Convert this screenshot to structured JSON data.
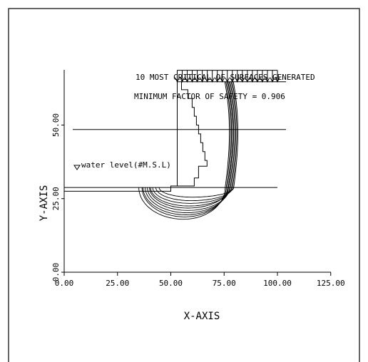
{
  "chart_data": {
    "type": "line",
    "title_lines": [
      "10 MOST CRITICAL OF SURFACES GENERATED",
      "MINIMUM FACTOR OF SAFETY = 0.906"
    ],
    "xlabel": "X-AXIS",
    "ylabel": "Y-AXIS",
    "xlim": [
      0,
      125
    ],
    "ylim": [
      0,
      62
    ],
    "x_ticks": [
      0,
      25,
      50,
      75,
      100,
      125
    ],
    "x_tick_labels": [
      "0.00",
      "25.00",
      "50.00",
      "75.00",
      "100.00",
      "125.00"
    ],
    "y_ticks": [
      0,
      25,
      50
    ],
    "y_tick_labels": [
      "0.00",
      "25.00",
      "50.00"
    ],
    "grid": false,
    "water_level_label": "water level(#M.S.L)",
    "slope_lines": [
      {
        "name": "ground-profile",
        "points": [
          [
            0,
            27.5
          ],
          [
            50,
            27.5
          ],
          [
            50,
            29.3
          ],
          [
            53,
            29.3
          ],
          [
            53,
            64.7
          ],
          [
            104,
            64.7
          ]
        ]
      },
      {
        "name": "water-level-line",
        "points": [
          [
            4,
            48.5
          ],
          [
            104,
            48.5
          ]
        ]
      },
      {
        "name": "lower-bench-line",
        "points": [
          [
            0,
            28.8
          ],
          [
            100,
            28.8
          ]
        ]
      },
      {
        "name": "internal-boundary",
        "points": [
          [
            55,
            64.7
          ],
          [
            55,
            62
          ],
          [
            58,
            62
          ],
          [
            58,
            59
          ],
          [
            60,
            59
          ],
          [
            60,
            56
          ],
          [
            61,
            56
          ],
          [
            61,
            53
          ],
          [
            62,
            53
          ],
          [
            62,
            50
          ],
          [
            63,
            50
          ],
          [
            63,
            47
          ],
          [
            64,
            47
          ],
          [
            64,
            44
          ],
          [
            65,
            44
          ],
          [
            65,
            41
          ],
          [
            66,
            41
          ],
          [
            66,
            38
          ],
          [
            67,
            38
          ],
          [
            67,
            36
          ],
          [
            63,
            36
          ],
          [
            63,
            32
          ],
          [
            61,
            32
          ],
          [
            61,
            29.3
          ],
          [
            53,
            29.3
          ]
        ]
      }
    ],
    "surcharge": {
      "x_start": 53,
      "x_end": 100,
      "y_ground": 64.7,
      "y_top": 68.6,
      "arrow_count": 21
    },
    "slip_surfaces": [
      {
        "xc": 56.0,
        "xl": 35.0,
        "xr": 75.5,
        "ybot": 18.0
      },
      {
        "xc": 56.5,
        "xl": 36.5,
        "xr": 76.0,
        "ybot": 18.8
      },
      {
        "xc": 57.0,
        "xl": 37.0,
        "xr": 76.5,
        "ybot": 19.5
      },
      {
        "xc": 57.5,
        "xl": 38.0,
        "xr": 77.0,
        "ybot": 20.2
      },
      {
        "xc": 58.0,
        "xl": 39.0,
        "xr": 77.5,
        "ybot": 21.0
      },
      {
        "xc": 58.0,
        "xl": 40.0,
        "xr": 77.0,
        "ybot": 21.8
      },
      {
        "xc": 58.5,
        "xl": 40.5,
        "xr": 78.0,
        "ybot": 22.5
      },
      {
        "xc": 59.0,
        "xl": 41.5,
        "xr": 78.5,
        "ybot": 23.4
      },
      {
        "xc": 59.5,
        "xl": 43.0,
        "xr": 79.0,
        "ybot": 24.3
      },
      {
        "xc": 60.0,
        "xl": 44.5,
        "xr": 79.5,
        "ybot": 25.5
      }
    ]
  }
}
